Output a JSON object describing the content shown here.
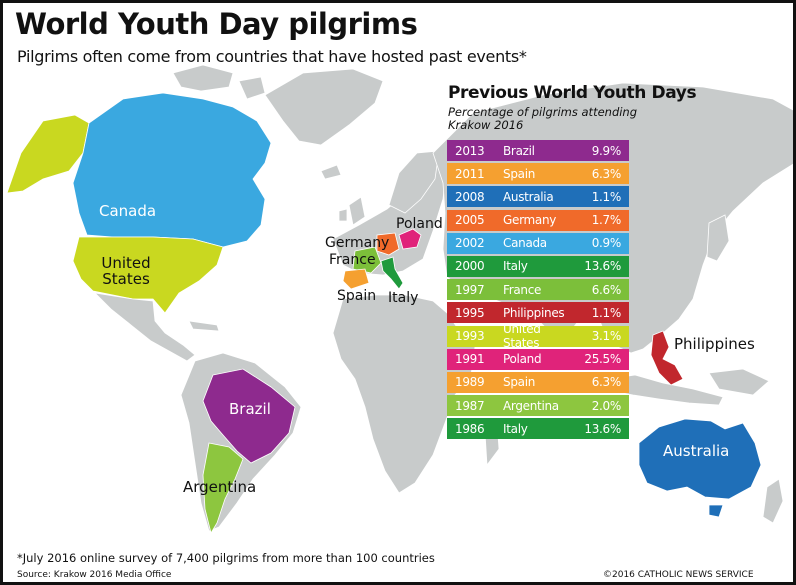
{
  "title": "World Youth Day pilgrims",
  "subtitle": "Pilgrims often come from countries that have hosted past events*",
  "table": {
    "title": "Previous World Youth Days",
    "subtitle": "Percentage of pilgrims attending Krakow 2016",
    "rows": [
      {
        "year": "2013",
        "country": "Brazil",
        "percent": "9.9%",
        "color": "#8e2a8e"
      },
      {
        "year": "2011",
        "country": "Spain",
        "percent": "6.3%",
        "color": "#f5a030"
      },
      {
        "year": "2008",
        "country": "Australia",
        "percent": "1.1%",
        "color": "#1f6fb8"
      },
      {
        "year": "2005",
        "country": "Germany",
        "percent": "1.7%",
        "color": "#f06a2a"
      },
      {
        "year": "2002",
        "country": "Canada",
        "percent": "0.9%",
        "color": "#3aa8e0"
      },
      {
        "year": "2000",
        "country": "Italy",
        "percent": "13.6%",
        "color": "#1f9a3c"
      },
      {
        "year": "1997",
        "country": "France",
        "percent": "6.6%",
        "color": "#7cbf3a"
      },
      {
        "year": "1995",
        "country": "Philippines",
        "percent": "1.1%",
        "color": "#c1272d"
      },
      {
        "year": "1993",
        "country": "United States",
        "percent": "3.1%",
        "color": "#c9d820"
      },
      {
        "year": "1991",
        "country": "Poland",
        "percent": "25.5%",
        "color": "#e0237a"
      },
      {
        "year": "1989",
        "country": "Spain",
        "percent": "6.3%",
        "color": "#f5a030"
      },
      {
        "year": "1987",
        "country": "Argentina",
        "percent": "2.0%",
        "color": "#8dc63f"
      },
      {
        "year": "1986",
        "country": "Italy",
        "percent": "13.6%",
        "color": "#1f9a3c"
      }
    ]
  },
  "map_labels": {
    "canada": "Canada",
    "united_states": "United States",
    "poland": "Poland",
    "germany": "Germany",
    "france": "France",
    "spain": "Spain",
    "italy": "Italy",
    "philippines": "Philippines",
    "brazil": "Brazil",
    "argentina": "Argentina",
    "australia": "Australia"
  },
  "colors": {
    "land": "#c8cbcb",
    "canada": "#3aa8e0",
    "united_states": "#c9d820",
    "alaska": "#c9d820",
    "brazil": "#8e2a8e",
    "argentina": "#8dc63f",
    "australia": "#1f6fb8",
    "philippines": "#c1272d",
    "poland": "#e0237a",
    "germany": "#f06a2a",
    "france": "#7cbf3a",
    "spain": "#f5a030",
    "italy": "#1f9a3c"
  },
  "footnote": "*July 2016 online survey of 7,400 pilgrims from more than 100 countries",
  "source": "Source: Krakow 2016 Media Office",
  "credit": "©2016 CATHOLIC NEWS SERVICE"
}
